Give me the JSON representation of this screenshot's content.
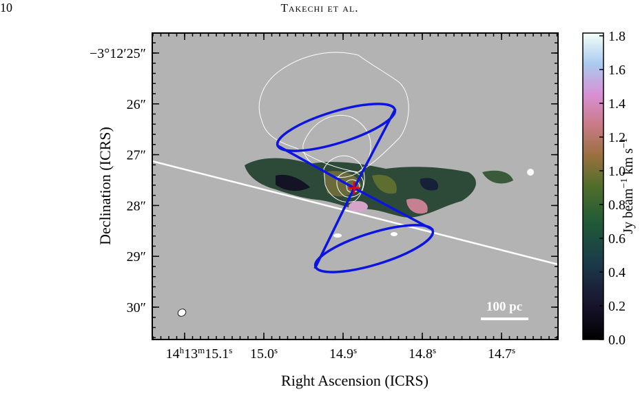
{
  "header": {
    "page_number": "10",
    "running_title": "Takechi et al."
  },
  "figure": {
    "y_axis_label": "Declination (ICRS)",
    "x_axis_label": "Right Ascension (ICRS)",
    "y_ticks": [
      "−3°12′25″",
      "26″",
      "27″",
      "28″",
      "29″",
      "30″"
    ],
    "x_ticks": [
      [
        "14",
        "h",
        "13",
        "m",
        "15.1",
        "s"
      ],
      [
        "15.0",
        "s"
      ],
      [
        "14.9",
        "s"
      ],
      [
        "14.8",
        "s"
      ],
      [
        "14.7",
        "s"
      ]
    ],
    "scale_bar": "100 pc",
    "colorbar": {
      "ticks": [
        "0.0",
        "0.2",
        "0.4",
        "0.6",
        "0.8",
        "1.0",
        "1.2",
        "1.4",
        "1.6",
        "1.8"
      ],
      "label": [
        "Jy beam",
        "−1",
        " km s",
        "−1"
      ]
    }
  }
}
